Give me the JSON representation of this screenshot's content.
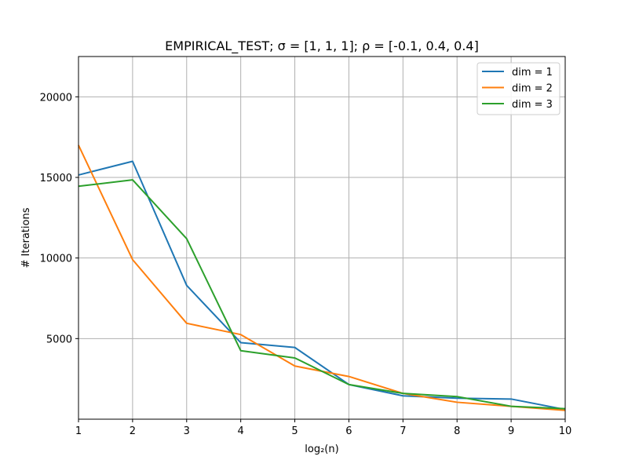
{
  "chart_data": {
    "type": "line",
    "title": "EMPIRICAL_TEST;  σ = [1, 1, 1];  ρ = [-0.1, 0.4, 0.4]",
    "xlabel": "log₂(n)",
    "ylabel": "# Iterations",
    "xlim": [
      1,
      10
    ],
    "ylim": [
      0,
      22500
    ],
    "x_ticks": [
      1,
      2,
      3,
      4,
      5,
      6,
      7,
      8,
      9,
      10
    ],
    "y_ticks": [
      5000,
      10000,
      15000,
      20000
    ],
    "grid": true,
    "legend_position": "top-right",
    "x": [
      1,
      2,
      3,
      4,
      5,
      6,
      7,
      8,
      9,
      10
    ],
    "series": [
      {
        "name": "dim = 1",
        "color": "#1f77b4",
        "values": [
          15150,
          16000,
          8300,
          4750,
          4450,
          2150,
          1450,
          1300,
          1250,
          600
        ]
      },
      {
        "name": "dim = 2",
        "color": "#ff7f0e",
        "values": [
          17000,
          9900,
          5950,
          5250,
          3300,
          2650,
          1600,
          1050,
          800,
          550
        ]
      },
      {
        "name": "dim = 3",
        "color": "#2ca02c",
        "values": [
          14450,
          14850,
          11200,
          4250,
          3800,
          2150,
          1600,
          1400,
          800,
          650
        ]
      }
    ]
  }
}
